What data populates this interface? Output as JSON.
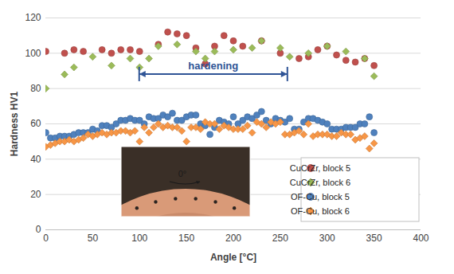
{
  "chart_data": {
    "type": "scatter",
    "x_label": "Angle [°C]",
    "y_label": "Hardness HV1",
    "xlim": [
      0,
      400
    ],
    "xticks": [
      0,
      50,
      100,
      150,
      200,
      250,
      300,
      350,
      400
    ],
    "ylim": [
      0,
      120
    ],
    "yticks": [
      0,
      20,
      40,
      60,
      80,
      100,
      120
    ],
    "grid": true,
    "legend": "lower right",
    "annotations": [
      {
        "text": "hardening",
        "x": [
          100,
          258
        ],
        "y": 88
      },
      {
        "text": "0°"
      }
    ],
    "series": [
      {
        "name": "CuCrZr, block 5",
        "color": "#c0504d",
        "marker": "circle",
        "x": [
          0,
          20,
          30,
          40,
          60,
          70,
          80,
          90,
          100,
          120,
          130,
          140,
          150,
          160,
          170,
          180,
          190,
          200,
          210,
          230,
          250,
          270,
          280,
          290,
          300,
          310,
          320,
          330,
          340,
          350
        ],
        "values": [
          101,
          100,
          102,
          101,
          102,
          100,
          102,
          102,
          101,
          105,
          112,
          111,
          110,
          103,
          94,
          104,
          110,
          107,
          104,
          107,
          100,
          97,
          98,
          102,
          104,
          99,
          96,
          95,
          97,
          93
        ]
      },
      {
        "name": "CuCrZr, block 6",
        "color": "#9bbb59",
        "marker": "diamond",
        "x": [
          0,
          20,
          30,
          50,
          70,
          90,
          100,
          110,
          120,
          140,
          160,
          170,
          180,
          200,
          220,
          230,
          250,
          260,
          280,
          300,
          320,
          340,
          350
        ],
        "values": [
          80,
          88,
          92,
          98,
          93,
          97,
          92,
          97,
          104,
          105,
          101,
          97,
          101,
          102,
          103,
          107,
          103,
          98,
          100,
          104,
          101,
          97,
          87
        ]
      },
      {
        "name": "OF-Cu, block 5",
        "color": "#4f81bd",
        "marker": "circle",
        "x": [
          0,
          5,
          10,
          15,
          20,
          25,
          30,
          35,
          40,
          45,
          50,
          55,
          60,
          65,
          70,
          75,
          80,
          85,
          90,
          95,
          100,
          105,
          110,
          115,
          120,
          125,
          130,
          135,
          140,
          145,
          150,
          155,
          160,
          165,
          170,
          175,
          180,
          185,
          190,
          195,
          200,
          205,
          210,
          215,
          220,
          225,
          230,
          235,
          240,
          245,
          250,
          255,
          260,
          265,
          270,
          275,
          280,
          285,
          290,
          295,
          300,
          305,
          310,
          315,
          320,
          325,
          330,
          335,
          340,
          345,
          350
        ],
        "values": [
          55,
          52,
          52,
          53,
          53,
          53,
          54,
          55,
          55,
          55,
          57,
          56,
          59,
          59,
          58,
          60,
          62,
          62,
          63,
          62,
          62,
          60,
          64,
          63,
          63,
          65,
          64,
          66,
          62,
          62,
          64,
          65,
          65,
          60,
          59,
          54,
          58,
          62,
          61,
          60,
          64,
          60,
          62,
          64,
          63,
          65,
          67,
          62,
          60,
          63,
          62,
          61,
          63,
          57,
          57,
          61,
          63,
          63,
          62,
          61,
          60,
          57,
          57,
          57,
          58,
          58,
          58,
          60,
          60,
          64,
          55
        ]
      },
      {
        "name": "OF-Cu, block 6",
        "color": "#f79646",
        "marker": "diamond",
        "x": [
          0,
          5,
          10,
          15,
          20,
          25,
          30,
          35,
          40,
          45,
          50,
          55,
          60,
          65,
          70,
          75,
          80,
          85,
          90,
          95,
          100,
          105,
          110,
          115,
          120,
          125,
          130,
          135,
          140,
          145,
          150,
          155,
          160,
          165,
          170,
          175,
          180,
          185,
          190,
          195,
          200,
          205,
          210,
          215,
          220,
          225,
          230,
          235,
          240,
          245,
          250,
          255,
          260,
          265,
          270,
          275,
          280,
          285,
          290,
          295,
          300,
          305,
          310,
          315,
          320,
          325,
          330,
          335,
          340,
          345,
          350
        ],
        "values": [
          47,
          48,
          49,
          50,
          50,
          51,
          50,
          51,
          52,
          54,
          53,
          54,
          55,
          54,
          55,
          55,
          56,
          56,
          55,
          56,
          50,
          58,
          55,
          58,
          60,
          58,
          59,
          58,
          58,
          56,
          50,
          58,
          58,
          57,
          61,
          60,
          60,
          57,
          59,
          58,
          57,
          57,
          57,
          59,
          55,
          61,
          60,
          58,
          61,
          60,
          61,
          54,
          54,
          55,
          56,
          54,
          60,
          53,
          54,
          54,
          54,
          53,
          53,
          55,
          54,
          54,
          51,
          52,
          53,
          46,
          49
        ]
      }
    ]
  }
}
